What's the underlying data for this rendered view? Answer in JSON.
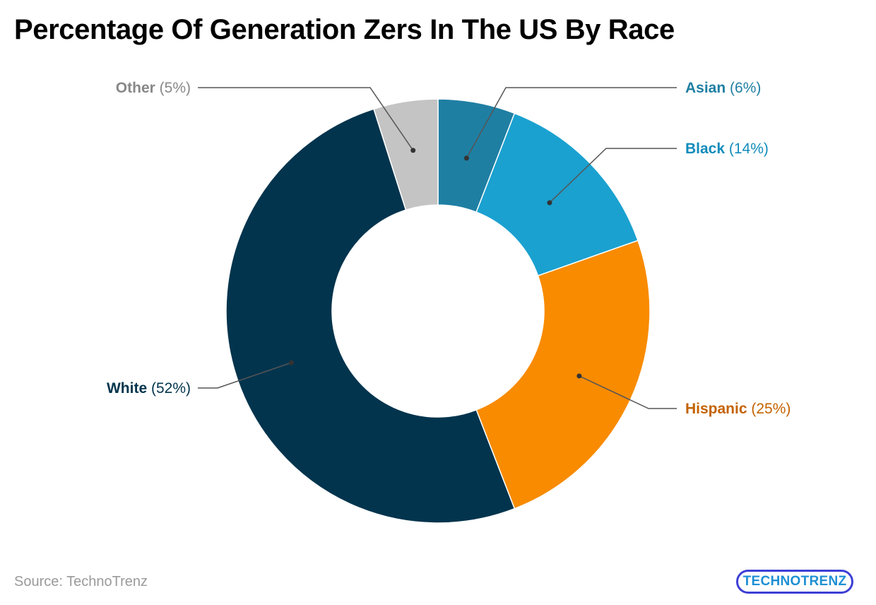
{
  "title": "Percentage Of Generation Zers In The US By Race",
  "source": "Source: TechnoTrenz",
  "logo_text": "TECHNOTRENZ",
  "chart_data": {
    "type": "pie",
    "variant": "donut",
    "title": "Percentage Of Generation Zers In The US By Race",
    "slices": [
      {
        "label": "Asian",
        "value": 6,
        "display": "(6%)",
        "color": "#1f7fa3",
        "label_color": "#1f7fa3"
      },
      {
        "label": "Black",
        "value": 14,
        "display": "(14%)",
        "color": "#1aa1d0",
        "label_color": "#128cbb"
      },
      {
        "label": "Hispanic",
        "value": 25,
        "display": "(25%)",
        "color": "#f88b00",
        "label_color": "#c46200"
      },
      {
        "label": "White",
        "value": 52,
        "display": "(52%)",
        "color": "#02344d",
        "label_color": "#02344d"
      },
      {
        "label": "Other",
        "value": 5,
        "display": "(5%)",
        "color": "#c4c4c4",
        "label_color": "#888888"
      }
    ],
    "start": "top",
    "direction": "clockwise",
    "legend": "none"
  }
}
